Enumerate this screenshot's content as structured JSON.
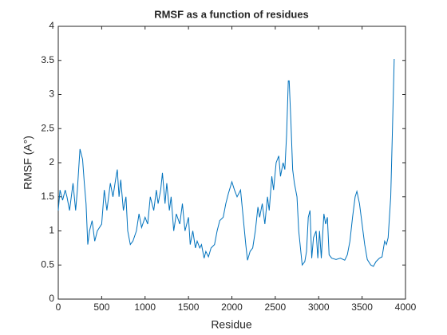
{
  "chart_data": {
    "type": "line",
    "title": "RMSF as a function of residues",
    "xlabel": "Residue",
    "ylabel": "RMSF (A°)",
    "xlim": [
      0,
      4000
    ],
    "xticks": [
      0,
      500,
      1000,
      1500,
      2000,
      2500,
      3000,
      3500,
      4000
    ],
    "ylim": [
      0,
      4
    ],
    "yticks": [
      0,
      0.5,
      1,
      1.5,
      2,
      2.5,
      3,
      3.5,
      4
    ],
    "series": [
      {
        "name": "RMSF",
        "color": "#0072bd",
        "x": [
          0,
          20,
          50,
          80,
          100,
          130,
          150,
          170,
          200,
          220,
          250,
          280,
          300,
          320,
          340,
          360,
          390,
          420,
          450,
          500,
          530,
          560,
          600,
          630,
          660,
          680,
          700,
          720,
          750,
          780,
          800,
          830,
          860,
          900,
          930,
          960,
          1000,
          1030,
          1060,
          1100,
          1130,
          1150,
          1180,
          1200,
          1230,
          1250,
          1280,
          1300,
          1330,
          1360,
          1400,
          1430,
          1460,
          1500,
          1520,
          1550,
          1580,
          1600,
          1630,
          1650,
          1680,
          1700,
          1730,
          1760,
          1800,
          1830,
          1860,
          1900,
          1930,
          1960,
          2000,
          2030,
          2060,
          2100,
          2130,
          2160,
          2180,
          2210,
          2240,
          2270,
          2300,
          2320,
          2350,
          2380,
          2410,
          2430,
          2460,
          2480,
          2510,
          2540,
          2560,
          2590,
          2610,
          2630,
          2650,
          2660,
          2680,
          2700,
          2720,
          2750,
          2770,
          2790,
          2810,
          2840,
          2860,
          2880,
          2900,
          2920,
          2940,
          2970,
          2990,
          3010,
          3030,
          3060,
          3080,
          3100,
          3120,
          3150,
          3200,
          3250,
          3300,
          3330,
          3360,
          3390,
          3420,
          3440,
          3470,
          3500,
          3530,
          3560,
          3600,
          3630,
          3660,
          3700,
          3730,
          3760,
          3780,
          3800,
          3830,
          3850,
          3870
        ],
        "values": [
          1.3,
          1.6,
          1.45,
          1.6,
          1.5,
          1.3,
          1.5,
          1.7,
          1.3,
          1.6,
          2.2,
          2.05,
          1.7,
          1.4,
          0.8,
          1.0,
          1.15,
          0.85,
          1.0,
          1.1,
          1.6,
          1.3,
          1.7,
          1.5,
          1.75,
          1.9,
          1.5,
          1.75,
          1.3,
          1.5,
          1.0,
          0.8,
          0.85,
          1.0,
          1.25,
          1.05,
          1.2,
          1.1,
          1.5,
          1.3,
          1.6,
          1.4,
          1.6,
          1.85,
          1.4,
          1.7,
          1.3,
          1.5,
          1.0,
          1.25,
          1.1,
          1.4,
          1.0,
          1.2,
          0.8,
          1.0,
          0.75,
          0.85,
          0.75,
          0.8,
          0.6,
          0.7,
          0.62,
          0.75,
          0.8,
          1.0,
          1.15,
          1.2,
          1.4,
          1.55,
          1.72,
          1.6,
          1.5,
          1.6,
          1.2,
          0.8,
          0.57,
          0.7,
          0.75,
          1.0,
          1.35,
          1.2,
          1.4,
          1.1,
          1.5,
          1.3,
          1.8,
          1.6,
          2.0,
          2.1,
          1.8,
          2.0,
          1.9,
          2.4,
          3.2,
          3.2,
          2.6,
          1.9,
          1.7,
          1.5,
          1.0,
          0.75,
          0.5,
          0.55,
          0.7,
          1.2,
          1.3,
          0.6,
          0.9,
          1.0,
          0.6,
          1.0,
          0.6,
          1.25,
          1.1,
          1.2,
          0.65,
          0.6,
          0.58,
          0.6,
          0.57,
          0.65,
          0.85,
          1.2,
          1.5,
          1.58,
          1.4,
          1.1,
          0.8,
          0.58,
          0.5,
          0.48,
          0.55,
          0.6,
          0.62,
          0.85,
          0.8,
          0.9,
          1.5,
          2.5,
          3.52
        ]
      }
    ]
  }
}
